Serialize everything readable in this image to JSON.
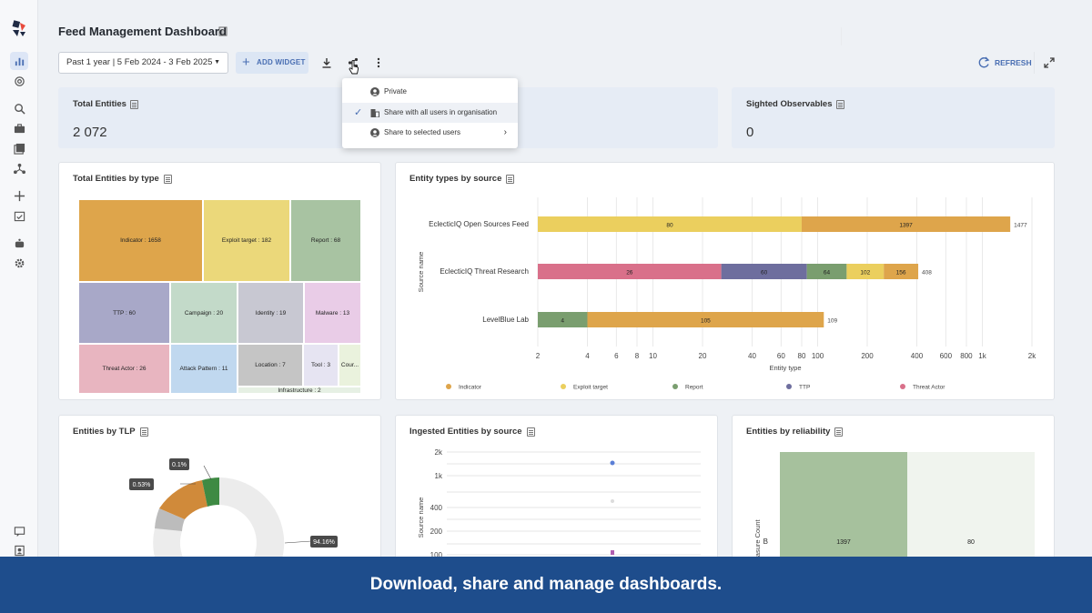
{
  "header": {
    "title": "Feed Management Dashboard",
    "date_range": "Past 1 year | 5 Feb 2024 - 3 Feb 2025",
    "add_widget": "ADD WIDGET",
    "refresh": "REFRESH"
  },
  "share_menu": {
    "items": [
      {
        "label": "Private",
        "icon": "user-circle-icon"
      },
      {
        "label": "Share with all users in organisation",
        "icon": "building-icon",
        "selected": true
      },
      {
        "label": "Share to selected users",
        "icon": "user-circle-icon"
      }
    ]
  },
  "stats": [
    {
      "label": "Total Entities",
      "value": "2 072"
    },
    {
      "label": "Sighted Observables",
      "value": "0"
    }
  ],
  "treemap": {
    "title": "Total Entities by type",
    "cells": [
      {
        "label": "Indicator : 1658",
        "color": "#dea54b"
      },
      {
        "label": "Exploit target : 182",
        "color": "#ebd87a"
      },
      {
        "label": "Report : 68",
        "color": "#a8c3a2"
      },
      {
        "label": "TTP : 60",
        "color": "#a8a8c8"
      },
      {
        "label": "Campaign : 20",
        "color": "#c3dac9"
      },
      {
        "label": "Identity : 19",
        "color": "#c8c8d2"
      },
      {
        "label": "Malware : 13",
        "color": "#e9cce7"
      },
      {
        "label": "Threat Actor : 26",
        "color": "#e8b5c0"
      },
      {
        "label": "Attack Pattern : 11",
        "color": "#c0d8ef"
      },
      {
        "label": "Location : 7",
        "color": "#c5c5c5"
      },
      {
        "label": "Tool : 3",
        "color": "#e6e4f2"
      },
      {
        "label": "Cour...",
        "color": "#eaf2dd"
      },
      {
        "label": "Infrastructure : 2",
        "color": "#e6f0e4"
      }
    ]
  },
  "entity_types_chart": {
    "title": "Entity types by source",
    "ylabel": "Source name",
    "xlabel": "Entity type",
    "ticks": [
      "2",
      "4",
      "6",
      "8",
      "10",
      "20",
      "40",
      "60",
      "80",
      "100",
      "200",
      "400",
      "600",
      "800",
      "1k",
      "2k"
    ],
    "legend": [
      "Indicator",
      "Exploit target",
      "Report",
      "TTP",
      "Threat Actor"
    ]
  },
  "chart_data": [
    {
      "type": "bar",
      "orientation": "horizontal",
      "stacked": true,
      "xscale": "log",
      "title": "Entity types by source",
      "xlabel": "Entity type",
      "ylabel": "Source name",
      "xlim": [
        2,
        2000
      ],
      "categories": [
        "EclecticIQ Open Sources Feed",
        "EclecticIQ Threat Research",
        "LevelBlue Lab"
      ],
      "totals": [
        "1477",
        "408",
        "109"
      ],
      "series": [
        {
          "name": "Indicator",
          "color": "#dea54b",
          "values": [
            1397,
            156,
            105
          ]
        },
        {
          "name": "Exploit target",
          "color": "#ebcf5e",
          "values": [
            80,
            102,
            null
          ]
        },
        {
          "name": "Report",
          "color": "#7a9e6f",
          "values": [
            null,
            64,
            4
          ]
        },
        {
          "name": "TTP",
          "color": "#6e6e9e",
          "values": [
            null,
            60,
            null
          ]
        },
        {
          "name": "Threat Actor",
          "color": "#d9708a",
          "values": [
            null,
            26,
            null
          ]
        }
      ]
    },
    {
      "type": "pie",
      "title": "Entities by TLP",
      "values": [
        94.16,
        0.53,
        0.1
      ],
      "labels": [
        "94.16%",
        "0.53%",
        "0.1%"
      ]
    },
    {
      "type": "scatter",
      "title": "Ingested Entities by source",
      "ylabel": "Source name",
      "ticks": [
        "2k",
        "1k",
        "400",
        "200",
        "100"
      ]
    },
    {
      "type": "bar",
      "title": "Entities by reliability",
      "ylabel": "Measure Count",
      "categories": [
        "B"
      ],
      "values": [
        1397,
        80
      ],
      "labels": [
        "1397",
        "80"
      ]
    }
  ],
  "tlp_chart": {
    "title": "Entities by TLP",
    "labels": [
      "0.1%",
      "0.53%",
      "94.16%"
    ]
  },
  "ingested_chart": {
    "title": "Ingested Entities by source",
    "ylabel": "Source name",
    "ticks": [
      "2k",
      "1k",
      "400",
      "200",
      "100"
    ]
  },
  "reliability_chart": {
    "title": "Entities by reliability",
    "ylabel": "Measure Count",
    "category": "B",
    "labels": [
      "1397",
      "80"
    ]
  },
  "banner": "Download, share and manage dashboards."
}
